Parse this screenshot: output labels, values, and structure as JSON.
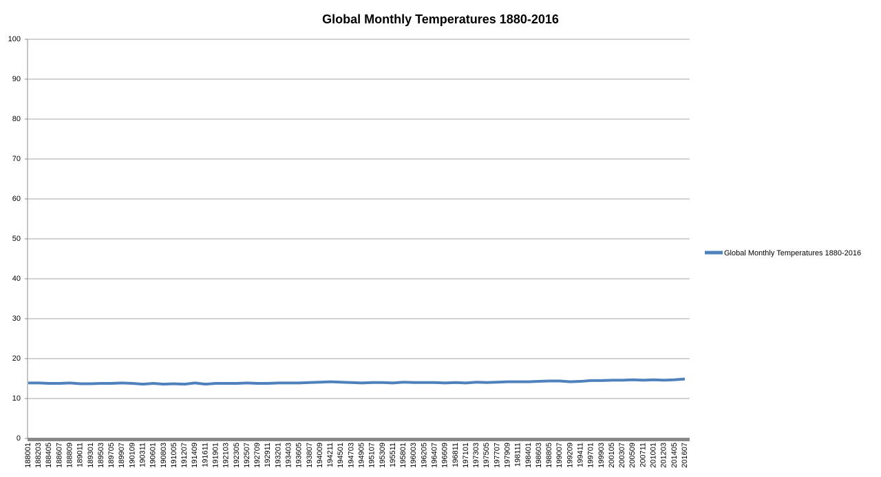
{
  "chart_data": {
    "type": "line",
    "title": "Global Monthly Temperatures 1880-2016",
    "categories": [
      "188001",
      "188203",
      "188405",
      "188607",
      "188809",
      "189011",
      "189301",
      "189503",
      "189705",
      "189907",
      "190109",
      "190311",
      "190601",
      "190803",
      "191005",
      "191207",
      "191409",
      "191611",
      "191901",
      "192103",
      "192305",
      "192507",
      "192709",
      "192911",
      "193201",
      "193403",
      "193605",
      "193807",
      "194009",
      "194211",
      "194501",
      "194703",
      "194905",
      "195107",
      "195309",
      "195511",
      "195801",
      "196003",
      "196205",
      "196407",
      "196609",
      "196811",
      "197101",
      "197303",
      "197505",
      "197707",
      "197909",
      "198111",
      "198401",
      "198603",
      "198805",
      "199007",
      "199209",
      "199411",
      "199701",
      "199903",
      "200105",
      "200307",
      "200509",
      "200711",
      "201001",
      "201203",
      "201405",
      "201607"
    ],
    "series": [
      {
        "name": "Global Monthly Temperatures 1880-2016",
        "color": "#4f81bd",
        "values": [
          13.9,
          13.9,
          13.8,
          13.8,
          13.9,
          13.7,
          13.7,
          13.8,
          13.8,
          13.9,
          13.8,
          13.6,
          13.8,
          13.6,
          13.7,
          13.6,
          13.9,
          13.6,
          13.8,
          13.8,
          13.8,
          13.9,
          13.8,
          13.8,
          13.9,
          13.9,
          13.9,
          14.0,
          14.1,
          14.2,
          14.1,
          14.0,
          13.9,
          14.0,
          14.0,
          13.9,
          14.1,
          14.0,
          14.0,
          14.0,
          13.9,
          14.0,
          13.9,
          14.1,
          14.0,
          14.1,
          14.2,
          14.2,
          14.2,
          14.3,
          14.4,
          14.4,
          14.2,
          14.3,
          14.5,
          14.5,
          14.6,
          14.6,
          14.7,
          14.6,
          14.7,
          14.6,
          14.7,
          14.9
        ]
      }
    ],
    "ylim": [
      0,
      100
    ],
    "yticks": [
      0,
      10,
      20,
      30,
      40,
      50,
      60,
      70,
      80,
      90,
      100
    ],
    "grid": true
  }
}
